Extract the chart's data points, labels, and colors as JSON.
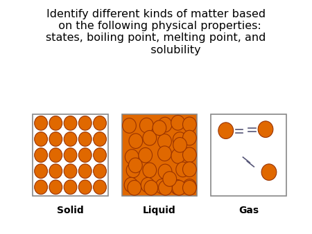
{
  "title": "Identify different kinds of matter based\n  on the following physical properties:\nstates, boiling point, melting point, and\n           solubility",
  "title_fontsize": 11.5,
  "background_color": "#ffffff",
  "particle_color": "#e06800",
  "particle_edge_color": "#993300",
  "box_edge_color": "#888888",
  "labels": [
    "Solid",
    "Liquid",
    "Gas"
  ],
  "label_fontsize": 10,
  "fig_w": 4.5,
  "fig_h": 3.38,
  "dpi": 100
}
